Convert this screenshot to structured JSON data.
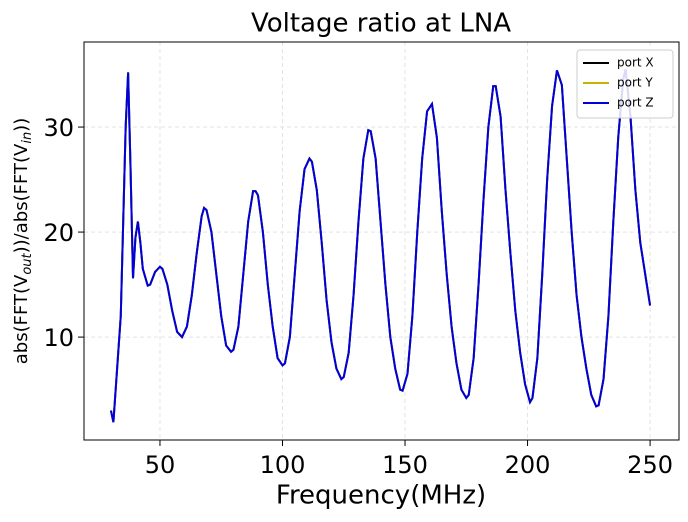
{
  "chart_data": {
    "type": "line",
    "title": "Voltage ratio at LNA",
    "xlabel": "Frequency(MHz)",
    "ylabel": [
      "abs(FFT(V",
      "out",
      "))/abs(FFT(V",
      "in",
      "))"
    ],
    "xlim": [
      19,
      261.8
    ],
    "ylim": [
      0.2,
      38.1
    ],
    "xticks": [
      50,
      100,
      150,
      200,
      250
    ],
    "yticks": [
      10,
      20,
      30
    ],
    "grid": true,
    "legend": "upper right",
    "x": [
      30,
      31,
      34,
      36,
      37,
      38,
      39,
      40,
      41,
      42,
      43,
      45,
      46,
      48,
      50,
      51,
      53,
      55,
      57,
      59,
      61,
      63,
      65,
      67,
      68,
      69,
      71,
      73,
      75,
      77,
      79,
      80,
      82,
      84,
      86,
      88,
      89,
      90,
      92,
      94,
      96,
      98,
      100,
      101,
      103,
      105,
      107,
      109,
      111,
      112,
      114,
      116,
      118,
      120,
      122,
      124,
      125,
      127,
      129,
      131,
      133,
      135,
      136,
      138,
      140,
      142,
      144,
      146,
      148,
      149,
      151,
      153,
      155,
      157,
      159,
      161,
      163,
      165,
      167,
      169,
      171,
      173,
      175,
      176,
      178,
      180,
      182,
      184,
      186,
      187,
      189,
      191,
      193,
      195,
      197,
      199,
      201,
      202,
      204,
      206,
      208,
      210,
      212,
      214,
      216,
      218,
      220,
      222,
      224,
      226,
      228,
      229,
      231,
      233,
      235,
      237,
      239,
      240,
      242,
      244,
      246,
      248,
      250
    ],
    "series": [
      {
        "name": "port X",
        "color": "#000000",
        "values": [
          3,
          1.9,
          12,
          30,
          35.2,
          26,
          15.6,
          19.5,
          21,
          19,
          16.5,
          14.9,
          15,
          16.2,
          16.7,
          16.5,
          15,
          12.5,
          10.5,
          10,
          11,
          14,
          18,
          21.5,
          22.3,
          22.1,
          20,
          16,
          12,
          9.2,
          8.6,
          8.8,
          11,
          16,
          21,
          23.9,
          23.9,
          23.5,
          20,
          15,
          11,
          8,
          7.3,
          7.5,
          10,
          16,
          22,
          26,
          27,
          26.7,
          24,
          19,
          13.5,
          9.5,
          7,
          6,
          6.2,
          8.5,
          14,
          21,
          27,
          29.7,
          29.6,
          27,
          21,
          15,
          10,
          7,
          5,
          4.9,
          6.5,
          12,
          20,
          27,
          31.5,
          32.2,
          29,
          22,
          16,
          11,
          7.5,
          5,
          4.2,
          4.5,
          8,
          15,
          23,
          30,
          33.9,
          33.9,
          31,
          24,
          18,
          12.5,
          8.5,
          5.5,
          3.8,
          4.2,
          8,
          16,
          25,
          32,
          35.4,
          34,
          27,
          20,
          14,
          10,
          7,
          4.5,
          3.4,
          3.5,
          6,
          12,
          21,
          29,
          34.5,
          35.5,
          31,
          24,
          19,
          16,
          13
        ]
      },
      {
        "name": "port Y",
        "color": "#c8b400",
        "values": [
          3,
          1.9,
          12,
          30,
          35.2,
          26,
          15.6,
          19.5,
          21,
          19,
          16.5,
          14.9,
          15,
          16.2,
          16.7,
          16.5,
          15,
          12.5,
          10.5,
          10,
          11,
          14,
          18,
          21.5,
          22.3,
          22.1,
          20,
          16,
          12,
          9.2,
          8.6,
          8.8,
          11,
          16,
          21,
          23.9,
          23.9,
          23.5,
          20,
          15,
          11,
          8,
          7.3,
          7.5,
          10,
          16,
          22,
          26,
          27,
          26.7,
          24,
          19,
          13.5,
          9.5,
          7,
          6,
          6.2,
          8.5,
          14,
          21,
          27,
          29.7,
          29.6,
          27,
          21,
          15,
          10,
          7,
          5,
          4.9,
          6.5,
          12,
          20,
          27,
          31.5,
          32.2,
          29,
          22,
          16,
          11,
          7.5,
          5,
          4.2,
          4.5,
          8,
          15,
          23,
          30,
          33.9,
          33.9,
          31,
          24,
          18,
          12.5,
          8.5,
          5.5,
          3.8,
          4.2,
          8,
          16,
          25,
          32,
          35.4,
          34,
          27,
          20,
          14,
          10,
          7,
          4.5,
          3.4,
          3.5,
          6,
          12,
          21,
          29,
          34.5,
          35.5,
          31,
          24,
          19,
          16,
          13
        ]
      },
      {
        "name": "port Z",
        "color": "#0000dd",
        "values": [
          3,
          1.9,
          12,
          30,
          35.2,
          26,
          15.6,
          19.5,
          21,
          19,
          16.5,
          14.9,
          15,
          16.2,
          16.7,
          16.5,
          15,
          12.5,
          10.5,
          10,
          11,
          14,
          18,
          21.5,
          22.3,
          22.1,
          20,
          16,
          12,
          9.2,
          8.6,
          8.8,
          11,
          16,
          21,
          23.9,
          23.9,
          23.5,
          20,
          15,
          11,
          8,
          7.3,
          7.5,
          10,
          16,
          22,
          26,
          27,
          26.7,
          24,
          19,
          13.5,
          9.5,
          7,
          6,
          6.2,
          8.5,
          14,
          21,
          27,
          29.7,
          29.6,
          27,
          21,
          15,
          10,
          7,
          5,
          4.9,
          6.5,
          12,
          20,
          27,
          31.5,
          32.2,
          29,
          22,
          16,
          11,
          7.5,
          5,
          4.2,
          4.5,
          8,
          15,
          23,
          30,
          33.9,
          33.9,
          31,
          24,
          18,
          12.5,
          8.5,
          5.5,
          3.8,
          4.2,
          8,
          16,
          25,
          32,
          35.4,
          34,
          27,
          20,
          14,
          10,
          7,
          4.5,
          3.4,
          3.5,
          6,
          12,
          21,
          29,
          34.5,
          35.5,
          31,
          24,
          19,
          16,
          13
        ]
      }
    ]
  }
}
